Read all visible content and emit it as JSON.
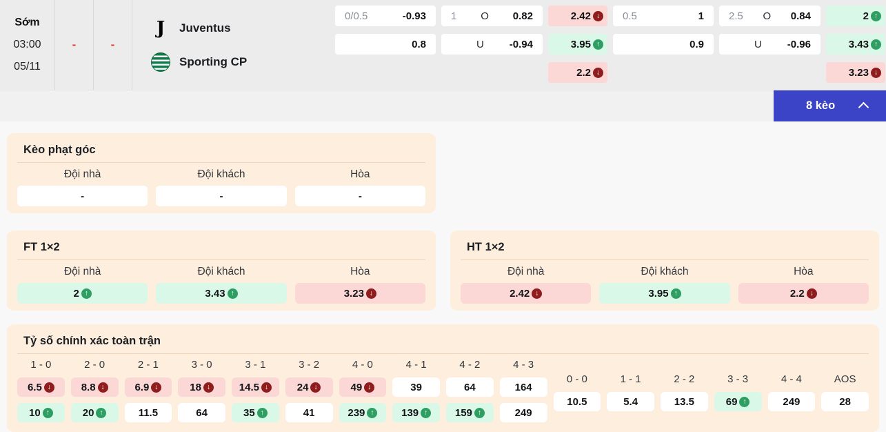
{
  "match": {
    "stage": "Sớm",
    "time": "03:00",
    "date": "05/11",
    "score_home": "-",
    "score_away": "-",
    "home": "Juventus",
    "away": "Sporting CP"
  },
  "icons": {
    "juventus_glyph": "J"
  },
  "top_odds": {
    "group1": {
      "handicap": {
        "line": "0/0.5",
        "home": "-0.93",
        "away": "0.8"
      },
      "ou": {
        "line": "1",
        "over_label": "O",
        "over": "0.82",
        "under_label": "U",
        "under": "-0.94"
      },
      "oneXtwo": [
        {
          "value": "2.42",
          "trend": "down"
        },
        {
          "value": "3.95",
          "trend": "up"
        },
        {
          "value": "2.2",
          "trend": "down"
        }
      ]
    },
    "group2": {
      "handicap": {
        "line": "0.5",
        "home": "1",
        "away": "0.9"
      },
      "ou": {
        "line": "2.5",
        "over_label": "O",
        "over": "0.84",
        "under_label": "U",
        "under": "-0.96"
      },
      "oneXtwo": [
        {
          "value": "2",
          "trend": "up"
        },
        {
          "value": "3.43",
          "trend": "up"
        },
        {
          "value": "3.23",
          "trend": "down"
        }
      ]
    }
  },
  "toggle": {
    "label": "8 kèo"
  },
  "corner": {
    "title": "Kèo phạt góc",
    "headers": [
      "Đội nhà",
      "Đội khách",
      "Hòa"
    ],
    "values": [
      "-",
      "-",
      "-"
    ]
  },
  "ft": {
    "title": "FT 1×2",
    "headers": [
      "Đội nhà",
      "Đội khách",
      "Hòa"
    ],
    "cells": [
      {
        "value": "2",
        "trend": "up"
      },
      {
        "value": "3.43",
        "trend": "up"
      },
      {
        "value": "3.23",
        "trend": "down"
      }
    ]
  },
  "ht": {
    "title": "HT 1×2",
    "headers": [
      "Đội nhà",
      "Đội khách",
      "Hòa"
    ],
    "cells": [
      {
        "value": "2.42",
        "trend": "down"
      },
      {
        "value": "3.95",
        "trend": "up"
      },
      {
        "value": "2.2",
        "trend": "down"
      }
    ]
  },
  "exact_score": {
    "title": "Tỷ số chính xác toàn trận",
    "win_columns": [
      {
        "label": "1 - 0",
        "top": {
          "value": "6.5",
          "trend": "down"
        },
        "bottom": {
          "value": "10",
          "trend": "up"
        }
      },
      {
        "label": "2 - 0",
        "top": {
          "value": "8.8",
          "trend": "down"
        },
        "bottom": {
          "value": "20",
          "trend": "up"
        }
      },
      {
        "label": "2 - 1",
        "top": {
          "value": "6.9",
          "trend": "down"
        },
        "bottom": {
          "value": "11.5"
        }
      },
      {
        "label": "3 - 0",
        "top": {
          "value": "18",
          "trend": "down"
        },
        "bottom": {
          "value": "64"
        }
      },
      {
        "label": "3 - 1",
        "top": {
          "value": "14.5",
          "trend": "down"
        },
        "bottom": {
          "value": "35",
          "trend": "up"
        }
      },
      {
        "label": "3 - 2",
        "top": {
          "value": "24",
          "trend": "down"
        },
        "bottom": {
          "value": "41"
        }
      },
      {
        "label": "4 - 0",
        "top": {
          "value": "49",
          "trend": "down"
        },
        "bottom": {
          "value": "239",
          "trend": "up"
        }
      },
      {
        "label": "4 - 1",
        "top": {
          "value": "39"
        },
        "bottom": {
          "value": "139",
          "trend": "up"
        }
      },
      {
        "label": "4 - 2",
        "top": {
          "value": "64"
        },
        "bottom": {
          "value": "159",
          "trend": "up"
        }
      },
      {
        "label": "4 - 3",
        "top": {
          "value": "164"
        },
        "bottom": {
          "value": "249"
        }
      }
    ],
    "draw_columns": [
      {
        "label": "0 - 0",
        "cell": {
          "value": "10.5"
        }
      },
      {
        "label": "1 - 1",
        "cell": {
          "value": "5.4"
        }
      },
      {
        "label": "2 - 2",
        "cell": {
          "value": "13.5"
        }
      },
      {
        "label": "3 - 3",
        "cell": {
          "value": "69",
          "trend": "up"
        }
      },
      {
        "label": "4 - 4",
        "cell": {
          "value": "249"
        }
      },
      {
        "label": "AOS",
        "cell": {
          "value": "28"
        }
      }
    ]
  },
  "colors": {
    "accent_blue": "#3b44c6",
    "up_green": "#2f9e63",
    "down_red": "#8f1d1d",
    "cell_green": "#d9f8e8",
    "cell_red": "#fbd8d6",
    "panel_bg": "#fdeede",
    "dash_red": "#e0392b"
  }
}
